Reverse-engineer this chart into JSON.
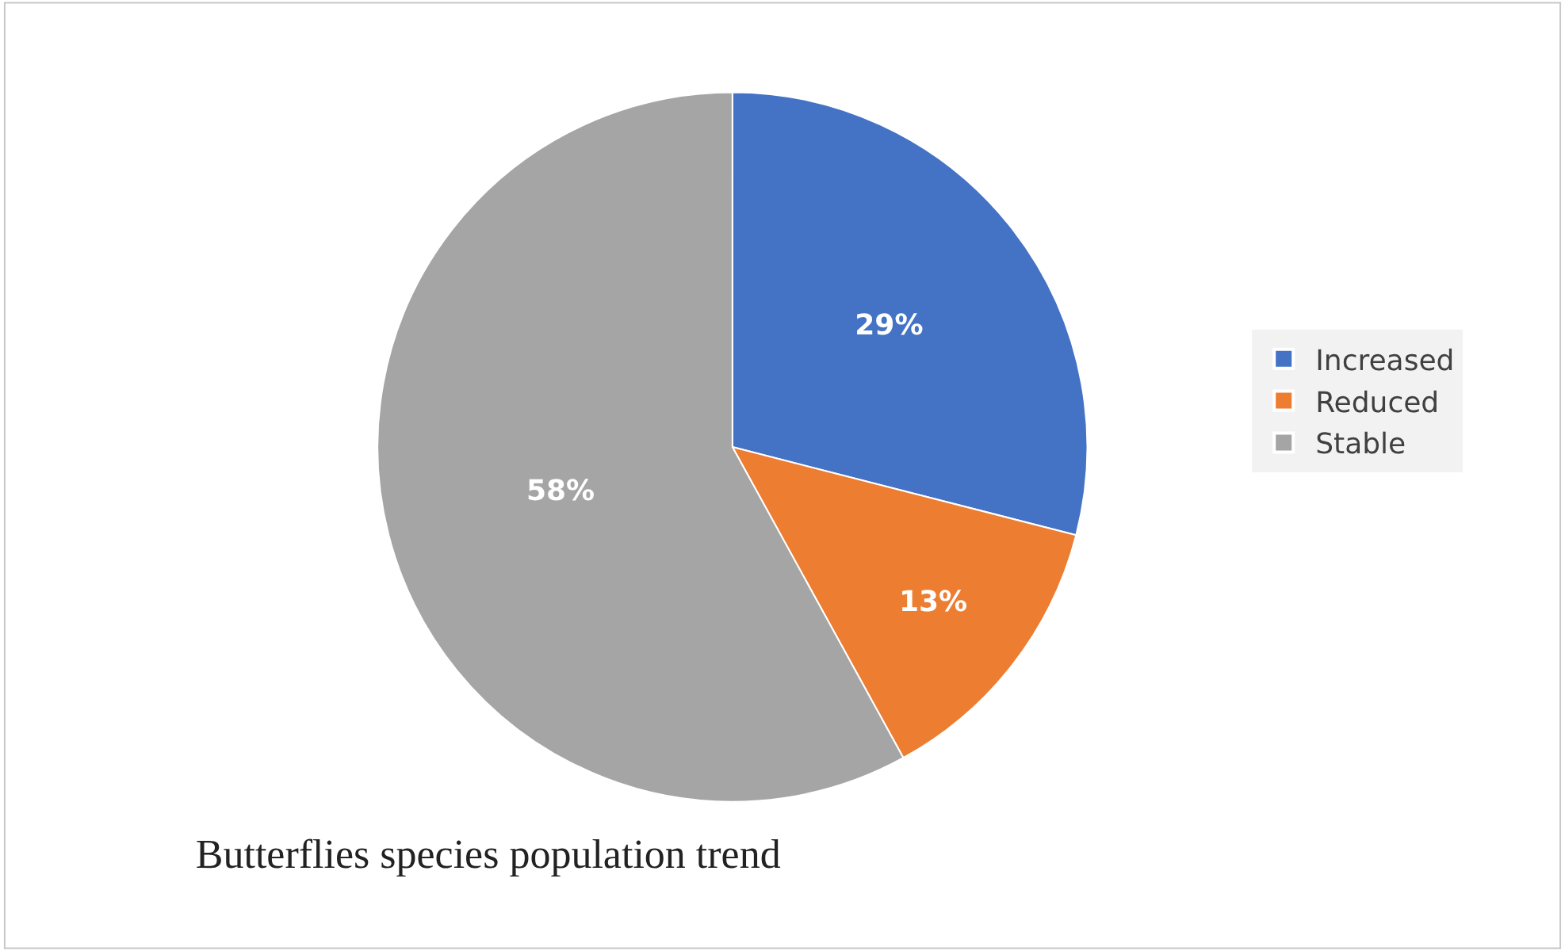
{
  "chart_data": {
    "type": "pie",
    "title": "Butterflies species population trend",
    "categories": [
      "Increased",
      "Reduced",
      "Stable"
    ],
    "values": [
      29,
      13,
      58
    ],
    "colors": [
      "#4472c4",
      "#ed7d31",
      "#a5a5a5"
    ],
    "value_labels": [
      "29%",
      "13%",
      "58%"
    ],
    "legend": "right"
  }
}
